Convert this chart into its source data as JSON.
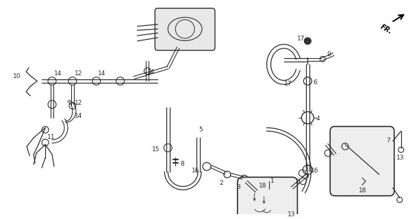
{
  "bg_color": "#ffffff",
  "line_color": "#2a2a2a",
  "fig_width": 6.12,
  "fig_height": 3.2,
  "dpi": 100
}
